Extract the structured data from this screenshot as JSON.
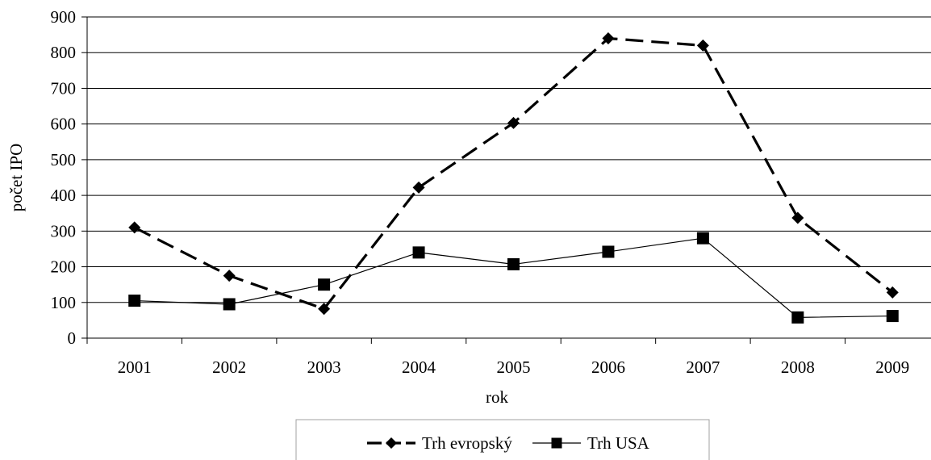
{
  "chart_data": {
    "type": "line",
    "title": "",
    "xlabel": "rok",
    "ylabel": "počet IPO",
    "categories": [
      "2001",
      "2002",
      "2003",
      "2004",
      "2005",
      "2006",
      "2007",
      "2008",
      "2009"
    ],
    "ylim": [
      0,
      900
    ],
    "yticks": [
      0,
      100,
      200,
      300,
      400,
      500,
      600,
      700,
      800,
      900
    ],
    "grid": "horizontal",
    "legend_position": "bottom",
    "series": [
      {
        "name": "Trh evropský",
        "values": [
          310,
          175,
          82,
          422,
          603,
          840,
          820,
          337,
          128
        ],
        "line": "dashed",
        "marker": "diamond",
        "color": "#000000"
      },
      {
        "name": "Trh USA",
        "values": [
          105,
          95,
          150,
          240,
          207,
          242,
          280,
          58,
          62
        ],
        "line": "solid",
        "marker": "square",
        "color": "#000000"
      }
    ]
  }
}
